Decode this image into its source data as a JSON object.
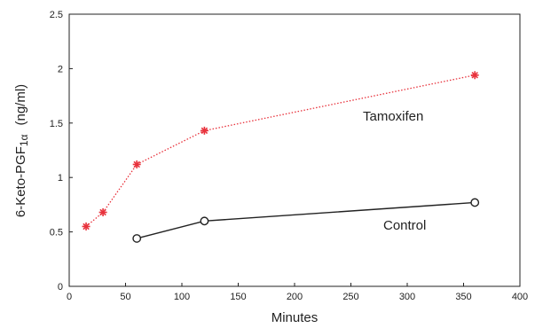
{
  "chart_data": {
    "type": "line",
    "xlabel": "Minutes",
    "ylabel": "6-Keto-PGF",
    "ylabel_subscript": "1α",
    "ylabel_unit": "(ng/ml)",
    "xlim": [
      0,
      400
    ],
    "ylim": [
      0,
      2.5
    ],
    "x_ticks": [
      "0",
      "50",
      "100",
      "150",
      "200",
      "250",
      "300",
      "350",
      "400"
    ],
    "y_ticks": [
      "0",
      "0.5",
      "1",
      "1.5",
      "2",
      "2.5"
    ],
    "grid": false,
    "series": [
      {
        "name": "Tamoxifen",
        "color": "#e8323c",
        "marker": "asterisk",
        "line_style": "dotted",
        "x": [
          15,
          30,
          60,
          120,
          360
        ],
        "y": [
          0.55,
          0.68,
          1.12,
          1.43,
          1.94
        ]
      },
      {
        "name": "Control",
        "color": "#222222",
        "marker": "open-circle",
        "line_style": "solid",
        "x": [
          60,
          120,
          360
        ],
        "y": [
          0.44,
          0.6,
          0.77
        ]
      }
    ]
  }
}
